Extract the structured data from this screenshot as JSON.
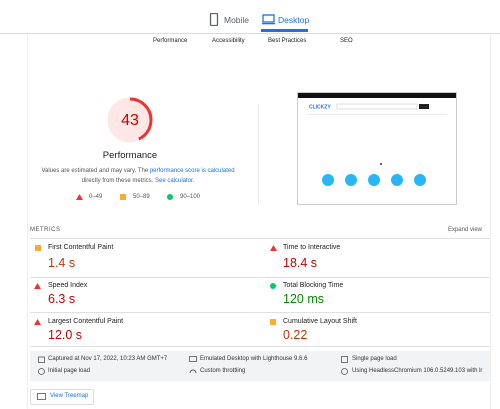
{
  "tabs": {
    "mobile": "Mobile",
    "desktop": "Desktop"
  },
  "nav": [
    "Performance",
    "Accessibility",
    "Best Practices",
    "SEO"
  ],
  "score": {
    "value": 43,
    "label": "Performance"
  },
  "description": {
    "text1": "Values are estimated and may vary. The ",
    "link1": "performance score is calculated",
    "text2": " directly from these metrics. ",
    "link2": "See calculator."
  },
  "legend": [
    "0–49",
    "50–89",
    "90–100"
  ],
  "preview": {
    "brand": "CLICKZY"
  },
  "metrics": {
    "title": "METRICS",
    "expand": "Expand view",
    "items": [
      {
        "label": "First Contentful Paint",
        "value": "1.4 s"
      },
      {
        "label": "Time to Interactive",
        "value": "18.4 s"
      },
      {
        "label": "Speed Index",
        "value": "6.3 s"
      },
      {
        "label": "Total Blocking Time",
        "value": "120 ms"
      },
      {
        "label": "Largest Contentful Paint",
        "value": "12.0 s"
      },
      {
        "label": "Cumulative Layout Shift",
        "value": "0.22"
      }
    ]
  },
  "footer": [
    "Captured at Nov 17, 2022, 10:23 AM GMT+7",
    "Emulated Desktop with Lighthouse 9.6.6",
    "Single page load",
    "Initial page load",
    "Custom throttling",
    "Using HeadlessChromium 106.0.5249.103 with lr"
  ],
  "treemap": "View Treemap"
}
